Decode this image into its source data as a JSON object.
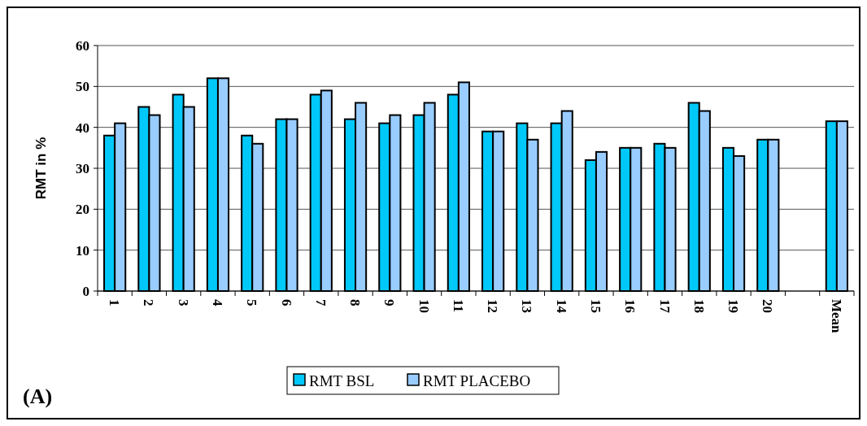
{
  "chart_data": {
    "type": "bar",
    "ylabel": "RMT in %",
    "categories": [
      "1",
      "2",
      "3",
      "4",
      "5",
      "6",
      "7",
      "8",
      "9",
      "10",
      "11",
      "12",
      "13",
      "14",
      "15",
      "16",
      "17",
      "18",
      "19",
      "20",
      null,
      "Mean"
    ],
    "series": [
      {
        "name": "RMT BSL",
        "color": "#00c8f8",
        "values": [
          38,
          45,
          48,
          52,
          38,
          42,
          48,
          42,
          41,
          43,
          48,
          39,
          41,
          41,
          32,
          35,
          36,
          46,
          35,
          37,
          null,
          41.5
        ]
      },
      {
        "name": "RMT PLACEBO",
        "color": "#99ccff",
        "values": [
          41,
          43,
          45,
          52,
          36,
          42,
          49,
          46,
          43,
          46,
          51,
          39,
          37,
          44,
          34,
          35,
          35,
          44,
          33,
          37,
          null,
          41.5
        ]
      }
    ],
    "ylim": [
      0,
      60
    ],
    "yticks": [
      0,
      10,
      20,
      30,
      40,
      50,
      60
    ],
    "grid": "y",
    "legend": "bottom",
    "annotations": [
      "(A)"
    ]
  }
}
